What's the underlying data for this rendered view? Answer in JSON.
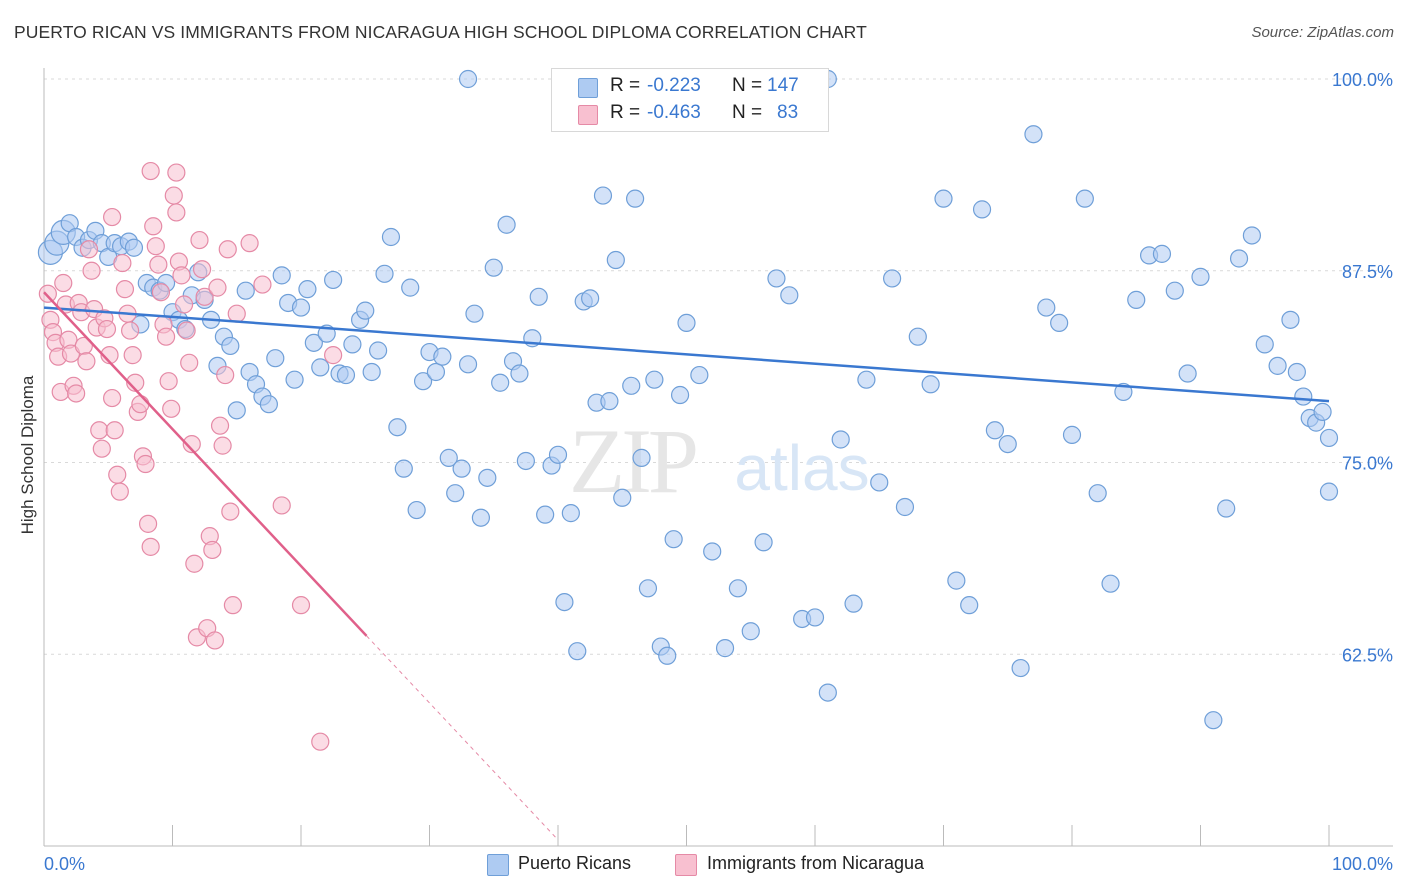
{
  "title": "PUERTO RICAN VS IMMIGRANTS FROM NICARAGUA HIGH SCHOOL DIPLOMA CORRELATION CHART",
  "source": "Source: ZipAtlas.com",
  "watermark": {
    "zip": "ZIP",
    "atlas": "atlas"
  },
  "legend": {
    "r_label": "R =",
    "n_label": "N =",
    "series": [
      {
        "r": "-0.223",
        "n": "147",
        "fill": "#aecbf2",
        "stroke": "#6f9fd8"
      },
      {
        "r": "-0.463",
        "n": "83",
        "fill": "#f8c0d0",
        "stroke": "#e58aa6"
      }
    ]
  },
  "bottom_legend": [
    "Puerto Ricans",
    "Immigrants from Nicaragua"
  ],
  "colors": {
    "blue": "#3a78d0",
    "blue_fill": "#aecbf2",
    "pink": "#e0608a",
    "pink_fill": "#f8c0d0",
    "grid": "#d9d9d9",
    "tick_label": "#3a78d0"
  },
  "chart_data": {
    "type": "scatter",
    "ylabel": "High School Diploma",
    "xlim": [
      0,
      100
    ],
    "ylim": [
      50,
      100
    ],
    "x_tick_labels": [
      "0.0%",
      "100.0%"
    ],
    "y_ticks": [
      100,
      87.5,
      75,
      62.5
    ],
    "y_tick_labels": [
      "100.0%",
      "87.5%",
      "75.0%",
      "62.5%"
    ],
    "grid": "horizontal dashed",
    "series": [
      {
        "name": "Puerto Ricans",
        "color": "#3a78d0",
        "trend": {
          "x": [
            0,
            100
          ],
          "y": [
            85.1,
            79.0
          ]
        },
        "points": [
          [
            0.5,
            88.7
          ],
          [
            1.0,
            89.3
          ],
          [
            1.5,
            90.0
          ],
          [
            2.0,
            90.6
          ],
          [
            2.5,
            89.7
          ],
          [
            3.0,
            89.0
          ],
          [
            3.5,
            89.5
          ],
          [
            4.0,
            90.1
          ],
          [
            4.5,
            89.3
          ],
          [
            5.0,
            88.4
          ],
          [
            5.5,
            89.3
          ],
          [
            6.0,
            89.1
          ],
          [
            6.6,
            89.4
          ],
          [
            7.0,
            89.0
          ],
          [
            7.5,
            84.0
          ],
          [
            8.0,
            86.7
          ],
          [
            8.5,
            86.4
          ],
          [
            9.0,
            86.2
          ],
          [
            9.5,
            86.7
          ],
          [
            10.0,
            84.8
          ],
          [
            10.5,
            84.3
          ],
          [
            11.0,
            83.7
          ],
          [
            11.5,
            85.9
          ],
          [
            12.0,
            87.4
          ],
          [
            12.5,
            85.6
          ],
          [
            13.0,
            84.3
          ],
          [
            13.5,
            81.3
          ],
          [
            14.0,
            83.2
          ],
          [
            14.5,
            82.6
          ],
          [
            15.0,
            78.4
          ],
          [
            15.7,
            86.2
          ],
          [
            16.0,
            80.9
          ],
          [
            16.5,
            80.1
          ],
          [
            17.0,
            79.3
          ],
          [
            17.5,
            78.8
          ],
          [
            18.0,
            81.8
          ],
          [
            18.5,
            87.2
          ],
          [
            19.0,
            85.4
          ],
          [
            19.5,
            80.4
          ],
          [
            20.0,
            85.1
          ],
          [
            20.5,
            86.3
          ],
          [
            21.0,
            82.8
          ],
          [
            21.5,
            81.2
          ],
          [
            22.0,
            83.4
          ],
          [
            22.5,
            86.9
          ],
          [
            23.0,
            80.8
          ],
          [
            23.5,
            80.7
          ],
          [
            24.0,
            82.7
          ],
          [
            24.6,
            84.3
          ],
          [
            25.0,
            84.9
          ],
          [
            25.5,
            80.9
          ],
          [
            26.0,
            82.3
          ],
          [
            26.5,
            87.3
          ],
          [
            27.0,
            89.7
          ],
          [
            27.5,
            77.3
          ],
          [
            28.0,
            74.6
          ],
          [
            28.5,
            86.4
          ],
          [
            29.0,
            71.9
          ],
          [
            29.5,
            80.3
          ],
          [
            30.0,
            82.2
          ],
          [
            30.5,
            80.9
          ],
          [
            31.0,
            81.9
          ],
          [
            31.5,
            75.3
          ],
          [
            32.0,
            73.0
          ],
          [
            32.5,
            74.6
          ],
          [
            33.0,
            81.4
          ],
          [
            33.5,
            84.7
          ],
          [
            34.0,
            71.4
          ],
          [
            34.5,
            74.0
          ],
          [
            35.0,
            87.7
          ],
          [
            35.5,
            80.2
          ],
          [
            36.0,
            90.5
          ],
          [
            36.5,
            81.6
          ],
          [
            37.0,
            80.8
          ],
          [
            37.5,
            75.1
          ],
          [
            38.0,
            83.1
          ],
          [
            38.5,
            85.8
          ],
          [
            39.0,
            71.6
          ],
          [
            39.5,
            74.8
          ],
          [
            40.0,
            75.5
          ],
          [
            40.5,
            65.9
          ],
          [
            41.0,
            71.7
          ],
          [
            41.5,
            62.7
          ],
          [
            42.0,
            85.5
          ],
          [
            42.5,
            85.7
          ],
          [
            43.0,
            78.9
          ],
          [
            43.5,
            92.4
          ],
          [
            44.0,
            79.0
          ],
          [
            44.5,
            88.2
          ],
          [
            45.0,
            72.7
          ],
          [
            45.7,
            80.0
          ],
          [
            46.0,
            92.2
          ],
          [
            46.5,
            75.3
          ],
          [
            47.0,
            66.8
          ],
          [
            47.5,
            80.4
          ],
          [
            48.0,
            63.0
          ],
          [
            48.5,
            62.4
          ],
          [
            49.0,
            70.0
          ],
          [
            49.5,
            79.4
          ],
          [
            50.0,
            84.1
          ],
          [
            51.0,
            80.7
          ],
          [
            52.0,
            69.2
          ],
          [
            53.0,
            62.9
          ],
          [
            54.0,
            66.8
          ],
          [
            55.0,
            64.0
          ],
          [
            56.0,
            69.8
          ],
          [
            57.0,
            87.0
          ],
          [
            58.0,
            85.9
          ],
          [
            59.0,
            64.8
          ],
          [
            60.0,
            64.9
          ],
          [
            61.0,
            60.0
          ],
          [
            62.0,
            76.5
          ],
          [
            63.0,
            65.8
          ],
          [
            64.0,
            80.4
          ],
          [
            65.0,
            73.7
          ],
          [
            66.0,
            87.0
          ],
          [
            67.0,
            72.1
          ],
          [
            68.0,
            83.2
          ],
          [
            69.0,
            80.1
          ],
          [
            70.0,
            92.2
          ],
          [
            71.0,
            67.3
          ],
          [
            72.0,
            65.7
          ],
          [
            73.0,
            91.5
          ],
          [
            74.0,
            77.1
          ],
          [
            75.0,
            76.2
          ],
          [
            76.0,
            61.6
          ],
          [
            77.0,
            96.4
          ],
          [
            78.0,
            85.1
          ],
          [
            79.0,
            84.1
          ],
          [
            80.0,
            76.8
          ],
          [
            81.0,
            92.2
          ],
          [
            82.0,
            73.0
          ],
          [
            83.0,
            67.1
          ],
          [
            84.0,
            79.6
          ],
          [
            85.0,
            85.6
          ],
          [
            86.0,
            88.5
          ],
          [
            87.0,
            88.6
          ],
          [
            88.0,
            86.2
          ],
          [
            89.0,
            80.8
          ],
          [
            90.0,
            87.1
          ],
          [
            91.0,
            58.2
          ],
          [
            92.0,
            72.0
          ],
          [
            93.0,
            88.3
          ],
          [
            94.0,
            89.8
          ],
          [
            95.0,
            82.7
          ],
          [
            96.0,
            81.3
          ],
          [
            97.0,
            84.3
          ],
          [
            97.5,
            80.9
          ],
          [
            98.0,
            79.3
          ],
          [
            98.5,
            77.9
          ],
          [
            99.0,
            77.6
          ],
          [
            99.5,
            78.3
          ],
          [
            100.0,
            76.6
          ],
          [
            100.0,
            73.1
          ],
          [
            56.0,
            100
          ],
          [
            61.0,
            100
          ],
          [
            33.0,
            100
          ]
        ]
      },
      {
        "name": "Immigrants from Nicaragua",
        "color": "#e0608a",
        "trend": {
          "x": [
            0,
            25.1
          ],
          "y": [
            86.1,
            63.7
          ],
          "dashed_to": {
            "x": 40,
            "y": 50.4
          }
        },
        "points": [
          [
            0.3,
            86.0
          ],
          [
            0.5,
            84.3
          ],
          [
            0.7,
            83.5
          ],
          [
            0.9,
            82.8
          ],
          [
            1.1,
            81.9
          ],
          [
            1.3,
            79.6
          ],
          [
            1.5,
            86.7
          ],
          [
            1.7,
            85.3
          ],
          [
            1.9,
            83.0
          ],
          [
            2.1,
            82.1
          ],
          [
            2.3,
            80.0
          ],
          [
            2.5,
            79.5
          ],
          [
            2.7,
            85.4
          ],
          [
            2.9,
            84.8
          ],
          [
            3.1,
            82.6
          ],
          [
            3.3,
            81.6
          ],
          [
            3.5,
            88.9
          ],
          [
            3.7,
            87.5
          ],
          [
            3.9,
            85.0
          ],
          [
            4.1,
            83.8
          ],
          [
            4.3,
            77.1
          ],
          [
            4.5,
            75.9
          ],
          [
            4.7,
            84.4
          ],
          [
            4.9,
            83.7
          ],
          [
            5.1,
            82.0
          ],
          [
            5.3,
            79.2
          ],
          [
            5.5,
            77.1
          ],
          [
            5.7,
            74.2
          ],
          [
            5.9,
            73.1
          ],
          [
            6.1,
            88.0
          ],
          [
            6.3,
            86.3
          ],
          [
            6.5,
            84.7
          ],
          [
            6.7,
            83.6
          ],
          [
            6.9,
            82.0
          ],
          [
            7.1,
            80.2
          ],
          [
            7.3,
            78.3
          ],
          [
            7.5,
            78.8
          ],
          [
            7.7,
            75.4
          ],
          [
            7.9,
            74.9
          ],
          [
            8.1,
            71.0
          ],
          [
            8.3,
            69.5
          ],
          [
            8.5,
            90.4
          ],
          [
            8.7,
            89.1
          ],
          [
            8.9,
            87.9
          ],
          [
            9.1,
            86.1
          ],
          [
            9.3,
            84.0
          ],
          [
            9.5,
            83.2
          ],
          [
            9.7,
            80.3
          ],
          [
            9.9,
            78.5
          ],
          [
            10.1,
            92.4
          ],
          [
            10.3,
            93.9
          ],
          [
            10.5,
            88.1
          ],
          [
            10.7,
            87.2
          ],
          [
            10.9,
            85.3
          ],
          [
            11.1,
            83.6
          ],
          [
            11.3,
            81.5
          ],
          [
            11.5,
            76.2
          ],
          [
            11.7,
            68.4
          ],
          [
            11.9,
            63.6
          ],
          [
            12.1,
            89.5
          ],
          [
            12.3,
            87.6
          ],
          [
            12.5,
            85.8
          ],
          [
            12.7,
            64.2
          ],
          [
            12.9,
            70.2
          ],
          [
            13.1,
            69.3
          ],
          [
            13.3,
            63.4
          ],
          [
            13.5,
            86.4
          ],
          [
            13.7,
            77.4
          ],
          [
            13.9,
            76.1
          ],
          [
            14.1,
            80.7
          ],
          [
            14.3,
            88.9
          ],
          [
            14.5,
            71.8
          ],
          [
            14.7,
            65.7
          ],
          [
            15.0,
            84.7
          ],
          [
            16.0,
            89.3
          ],
          [
            17.0,
            86.6
          ],
          [
            18.5,
            72.2
          ],
          [
            20.0,
            65.7
          ],
          [
            21.5,
            56.8
          ],
          [
            22.5,
            82.0
          ],
          [
            5.3,
            91.0
          ],
          [
            8.3,
            94.0
          ],
          [
            10.3,
            91.3
          ]
        ]
      }
    ]
  }
}
